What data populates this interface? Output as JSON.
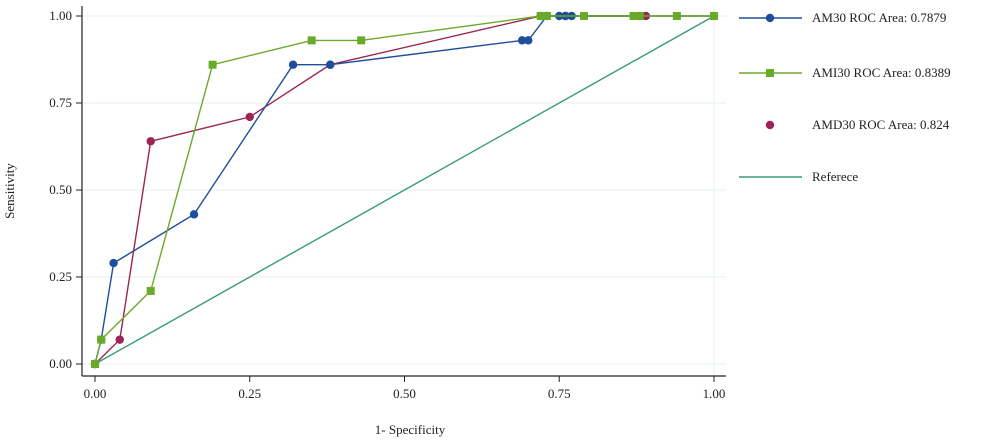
{
  "chart_data": {
    "type": "line",
    "xlabel": "1- Specificity",
    "ylabel": "Sensitivity",
    "xlim": [
      0,
      1
    ],
    "ylim": [
      0,
      1
    ],
    "xticks": [
      "0.00",
      "0.25",
      "0.50",
      "0.75",
      "1.00"
    ],
    "yticks": [
      "0.00",
      "0.25",
      "0.50",
      "0.75",
      "1.00"
    ],
    "legend_position": "right",
    "series": [
      {
        "name": "AM30 ROC Area: 0.7879",
        "color": "#1f4e9c",
        "marker": "circle",
        "style": "line",
        "x": [
          0.0,
          0.01,
          0.03,
          0.16,
          0.32,
          0.38,
          0.69,
          0.7,
          0.73,
          0.75,
          0.76,
          0.77,
          1.0
        ],
        "y": [
          0.0,
          0.07,
          0.29,
          0.43,
          0.86,
          0.86,
          0.93,
          0.93,
          1.0,
          1.0,
          1.0,
          1.0,
          1.0
        ]
      },
      {
        "name": "AMI30 ROC Area: 0.8389",
        "color": "#6aaa2a",
        "marker": "square",
        "style": "line",
        "x": [
          0.0,
          0.01,
          0.09,
          0.19,
          0.35,
          0.43,
          0.72,
          0.73,
          0.79,
          0.87,
          0.88,
          0.94,
          1.0
        ],
        "y": [
          0.0,
          0.07,
          0.21,
          0.86,
          0.93,
          0.93,
          1.0,
          1.0,
          1.0,
          1.0,
          1.0,
          1.0,
          1.0
        ]
      },
      {
        "name": "AMD30 ROC Area: 0.824",
        "color": "#9c2453",
        "marker": "circle",
        "style": "line",
        "x": [
          0.0,
          0.04,
          0.09,
          0.25,
          0.38,
          0.72,
          0.76,
          0.88,
          0.89
        ],
        "y": [
          0.0,
          0.07,
          0.64,
          0.71,
          0.86,
          1.0,
          1.0,
          1.0,
          1.0
        ]
      },
      {
        "name": "Referece",
        "color": "#3a9a7a",
        "style": "line",
        "x": [
          0,
          1
        ],
        "y": [
          0,
          1
        ]
      }
    ]
  }
}
